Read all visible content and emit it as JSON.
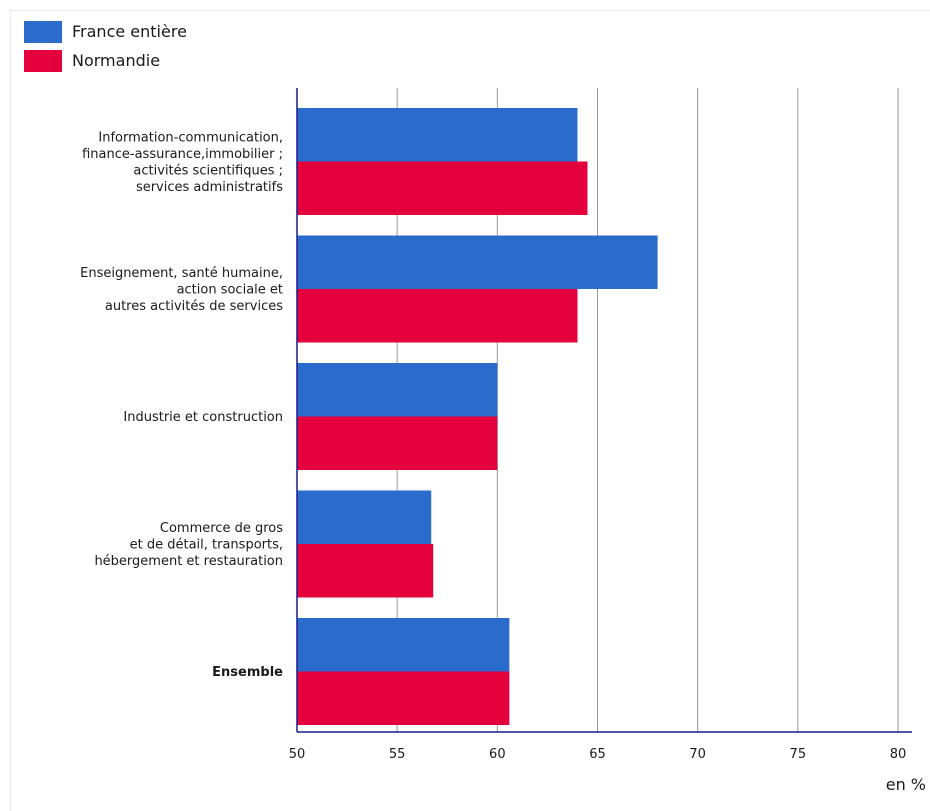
{
  "chart_data": {
    "type": "bar",
    "orientation": "horizontal",
    "categories": [
      [
        "Information-communication,",
        "finance-assurance,immobilier ;",
        "activités scientifiques ;",
        "services administratifs"
      ],
      [
        "Enseignement, santé humaine,",
        "action sociale et",
        "autres activités de services"
      ],
      [
        "Industrie et construction"
      ],
      [
        "Commerce de gros",
        "et de détail, transports,",
        "hébergement et restauration"
      ],
      [
        "Ensemble"
      ]
    ],
    "bold_categories": [
      false,
      false,
      false,
      false,
      true
    ],
    "series": [
      {
        "name": "France entière",
        "color": "#2b6bcc",
        "values": [
          64.0,
          68.0,
          60.0,
          56.7,
          60.6
        ]
      },
      {
        "name": "Normandie",
        "color": "#e4003c",
        "values": [
          64.5,
          64.0,
          60.0,
          56.8,
          60.6
        ]
      }
    ],
    "xlim": [
      50,
      80
    ],
    "xticks": [
      50,
      55,
      60,
      65,
      70,
      75,
      80
    ],
    "xlabel": "en %",
    "grid": true,
    "legend_position": "top-left",
    "axis_color": "#1a1a8c",
    "grid_color": "#999999"
  }
}
